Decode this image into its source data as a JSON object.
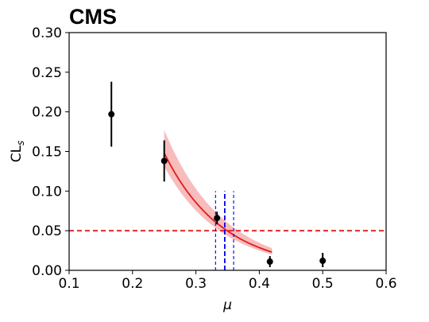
{
  "chart_data": {
    "type": "scatter",
    "title": "CMS",
    "xlabel": "μ",
    "ylabel_main": "CL",
    "ylabel_sub": "s",
    "xlim": [
      0.1,
      0.6
    ],
    "ylim": [
      0.0,
      0.3
    ],
    "xticks": [
      "0.1",
      "0.2",
      "0.3",
      "0.4",
      "0.5",
      "0.6"
    ],
    "yticks": [
      "0.00",
      "0.05",
      "0.10",
      "0.15",
      "0.20",
      "0.25",
      "0.30"
    ],
    "points": [
      {
        "x": 0.1667,
        "y": 0.197,
        "err_low": 0.156,
        "err_high": 0.238
      },
      {
        "x": 0.25,
        "y": 0.138,
        "err_low": 0.112,
        "err_high": 0.164
      },
      {
        "x": 0.3333,
        "y": 0.066,
        "err_low": 0.058,
        "err_high": 0.074
      },
      {
        "x": 0.4167,
        "y": 0.011,
        "err_low": 0.004,
        "err_high": 0.018
      },
      {
        "x": 0.5,
        "y": 0.012,
        "err_low": 0.004,
        "err_high": 0.022
      }
    ],
    "fit": {
      "x_range": [
        0.25,
        0.42
      ],
      "y_start": 0.148,
      "y_end": 0.023,
      "band_start": [
        0.131,
        0.177
      ],
      "band_end": [
        0.02,
        0.028
      ],
      "color": "#e41a1c",
      "band_color": "#f4a6a6"
    },
    "threshold": {
      "y": 0.05,
      "color": "#e41a1c",
      "style": "dashed"
    },
    "crossing": {
      "x_central": 0.3455,
      "x_low": 0.331,
      "x_high": 0.3595,
      "y_top": 0.1,
      "color": "#0000ee"
    },
    "grid": false
  }
}
